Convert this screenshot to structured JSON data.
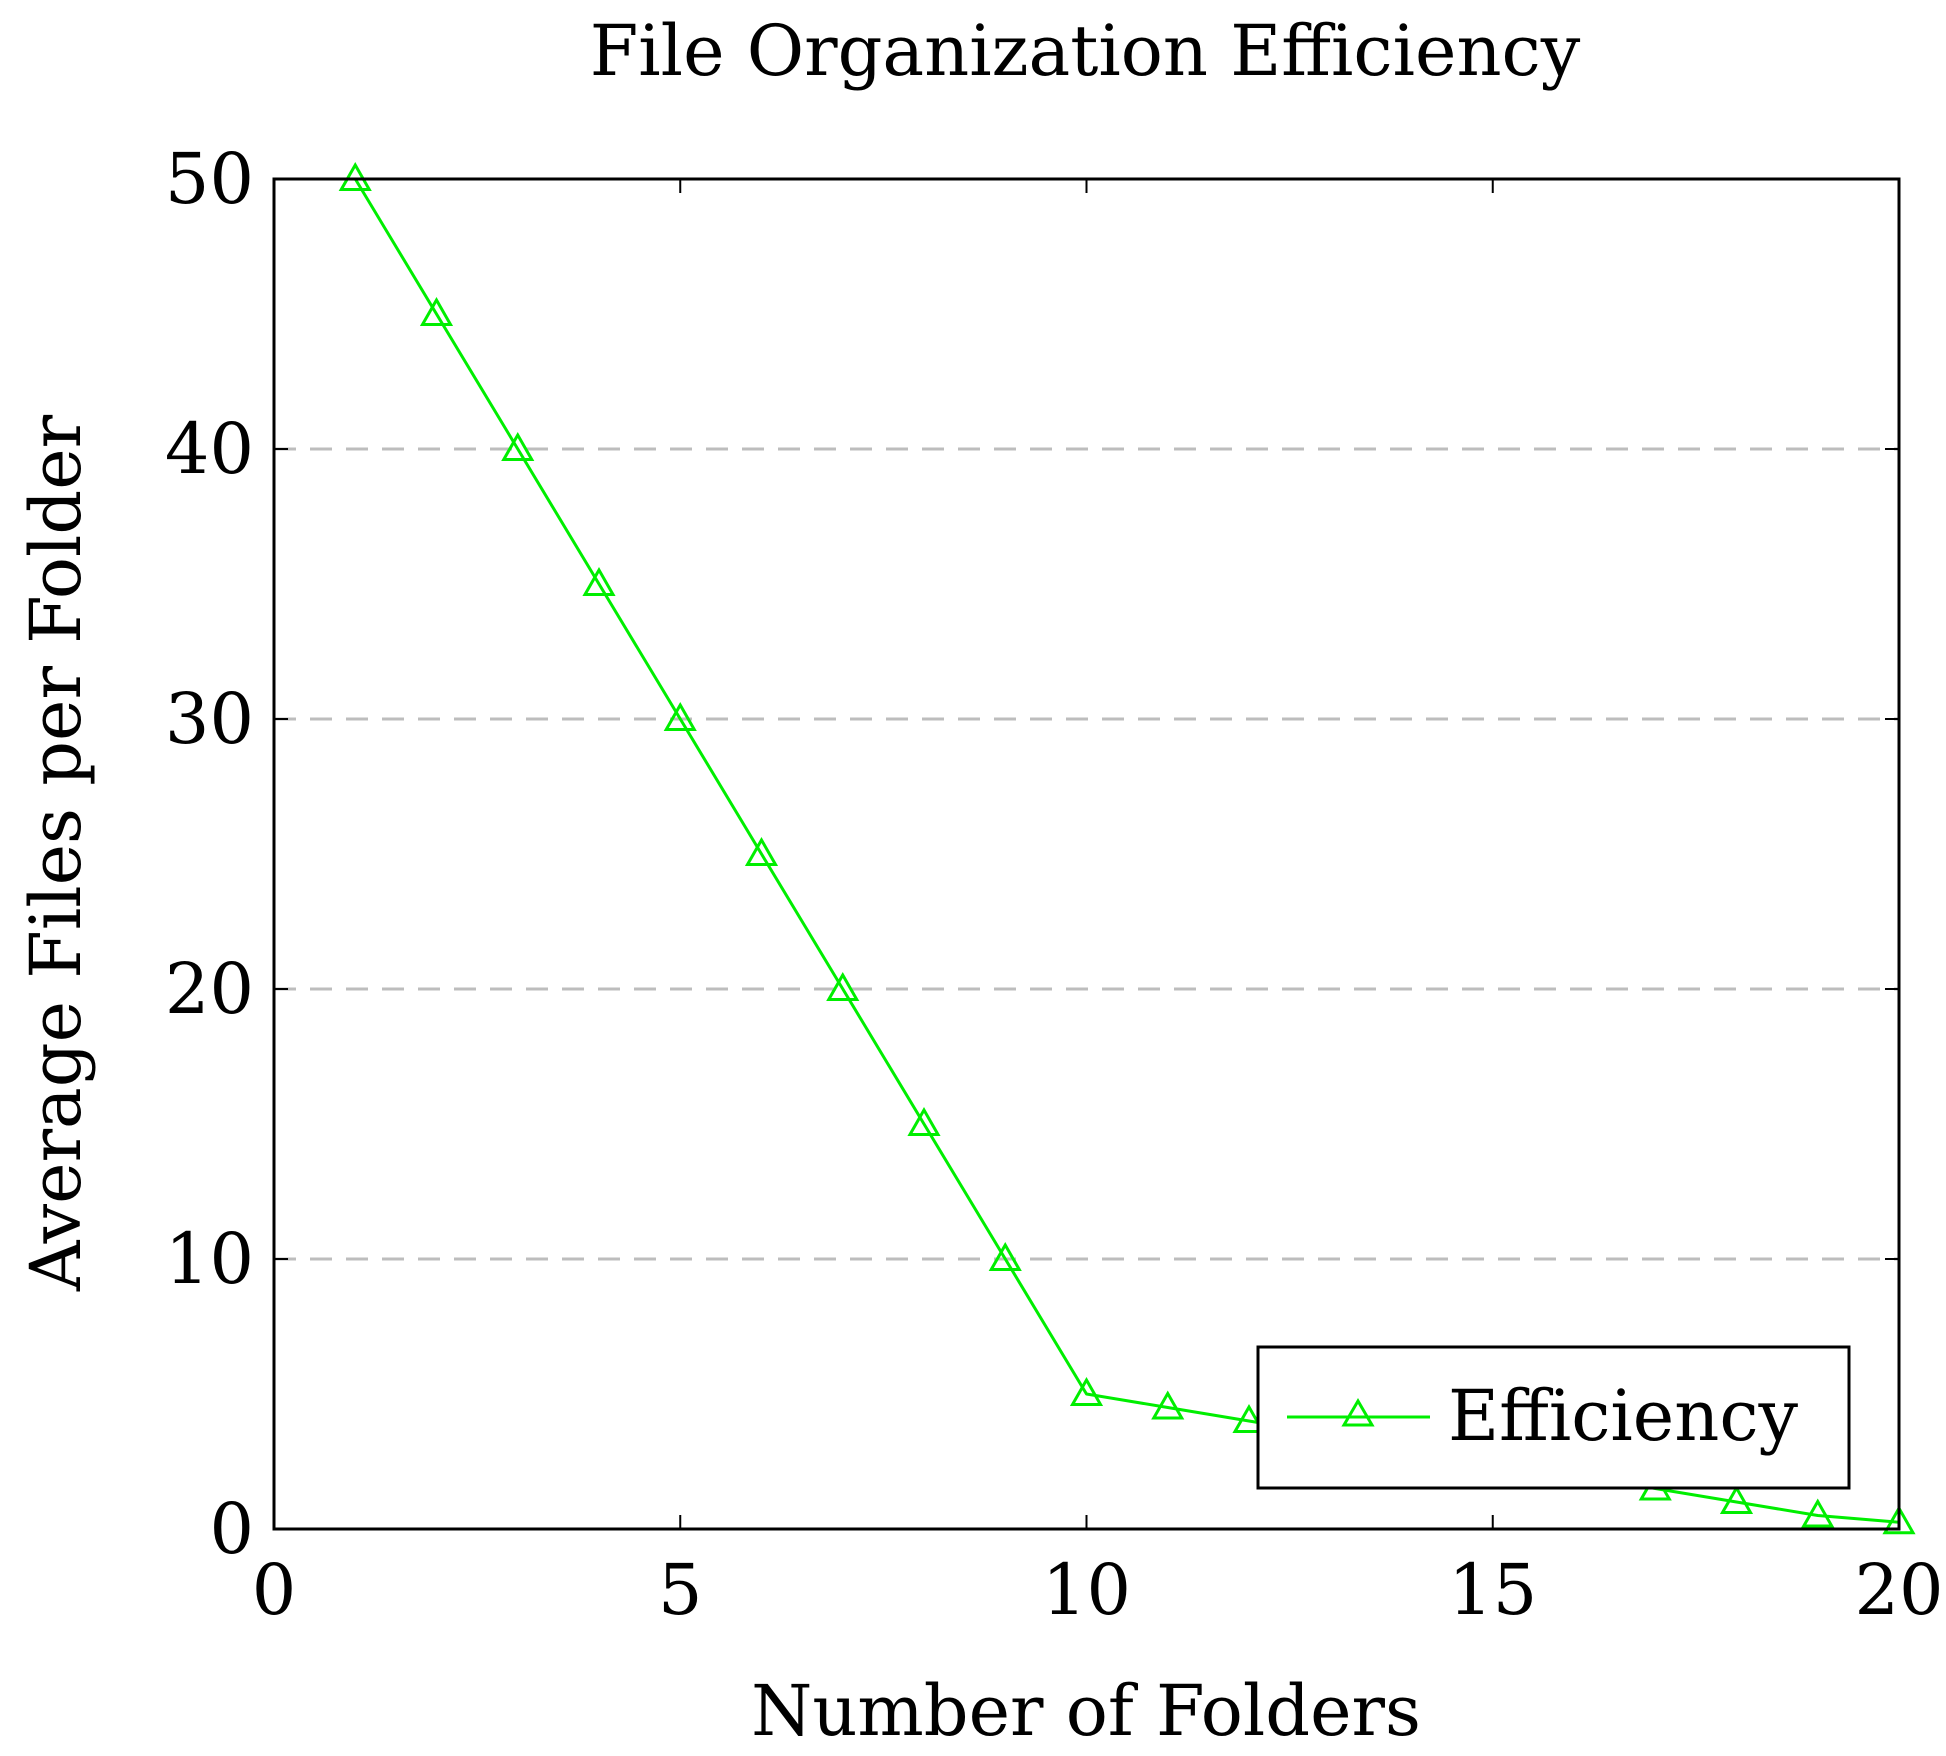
{
  "chart_data": {
    "type": "line",
    "title": "File Organization Efficiency",
    "xlabel": "Number of Folders",
    "ylabel": "Average Files per Folder",
    "xlim": [
      0,
      20
    ],
    "ylim": [
      0,
      50
    ],
    "xticks": [
      0,
      5,
      10,
      15,
      20
    ],
    "yticks": [
      0,
      10,
      20,
      30,
      40,
      50
    ],
    "grid": {
      "horizontal": true,
      "vertical": false,
      "style": "dashed"
    },
    "legend": {
      "position": "bottom-right"
    },
    "series": [
      {
        "name": "Efficiency",
        "color": "#00ee00",
        "marker": "triangle",
        "x": [
          1,
          2,
          3,
          4,
          5,
          6,
          7,
          8,
          9,
          10,
          11,
          12,
          13,
          14,
          15,
          16,
          17,
          18,
          19,
          20
        ],
        "y": [
          50,
          45,
          40,
          35,
          30,
          25,
          20,
          15,
          10,
          5,
          4.5,
          4,
          3.5,
          3,
          2.5,
          2,
          1.5,
          1,
          0.5,
          0.25
        ]
      }
    ]
  }
}
